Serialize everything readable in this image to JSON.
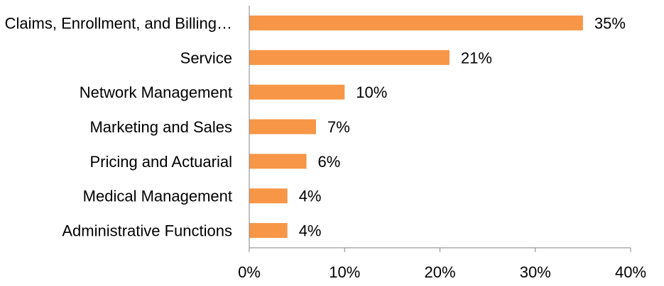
{
  "chart_data": {
    "type": "bar",
    "orientation": "horizontal",
    "categories": [
      "Claims, Enrollment, and Billing…",
      "Service",
      "Network Management",
      "Marketing and Sales",
      "Pricing and Actuarial",
      "Medical Management",
      "Administrative Functions"
    ],
    "values": [
      35,
      21,
      10,
      7,
      6,
      4,
      4
    ],
    "value_labels": [
      "35%",
      "21%",
      "10%",
      "7%",
      "6%",
      "4%",
      "4%"
    ],
    "xlim": [
      0,
      40
    ],
    "xticks": [
      0,
      10,
      20,
      30,
      40
    ],
    "xtick_labels": [
      "0%",
      "10%",
      "20%",
      "30%",
      "40%"
    ],
    "title": "",
    "xlabel": "",
    "ylabel": "",
    "grid": false,
    "legend": "none",
    "bar_color": "#F79646",
    "axis_color": "#868686"
  }
}
